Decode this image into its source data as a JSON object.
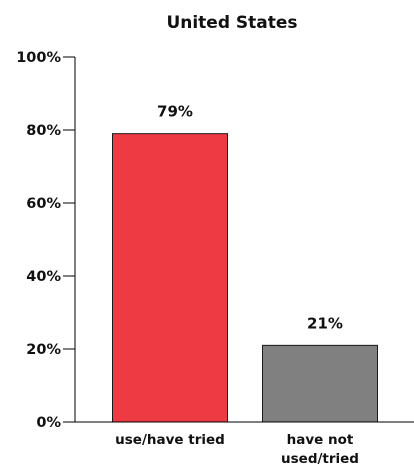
{
  "chart_data": {
    "type": "bar",
    "title": "United States",
    "categories": [
      "use/have tried",
      "have not used/tried"
    ],
    "category_label_lines": [
      [
        "use/have tried"
      ],
      [
        "have not",
        "used/tried"
      ]
    ],
    "values": [
      79,
      21
    ],
    "data_labels": [
      "79%",
      "21%"
    ],
    "colors": [
      "#ee3a43",
      "#808080"
    ],
    "ylim": [
      0,
      100
    ],
    "y_ticks": [
      0,
      20,
      40,
      60,
      80,
      100
    ],
    "y_tick_labels": [
      "0%",
      "20%",
      "40%",
      "60%",
      "80%",
      "100%"
    ],
    "xlabel": "",
    "ylabel": "",
    "grid": false,
    "legend": "none"
  }
}
